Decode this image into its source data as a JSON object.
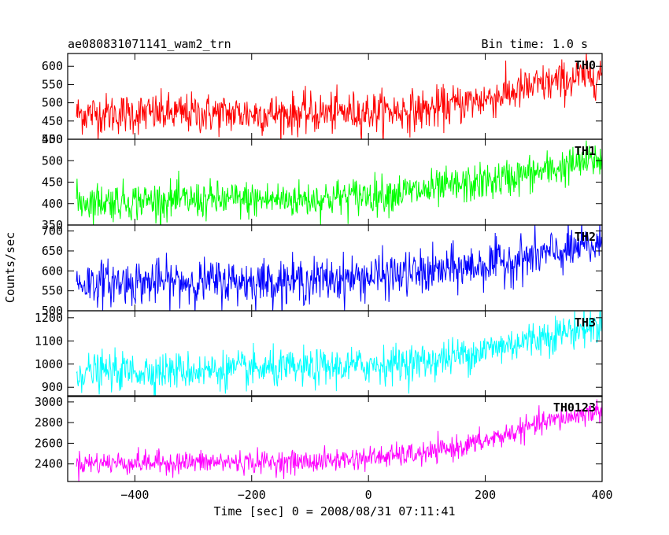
{
  "header": {
    "title": "ae080831071141_wam2_trn",
    "bin_time": "Bin time: 1.0 s"
  },
  "axes": {
    "ylabel": "Counts/sec",
    "xlabel": "Time [sec] 0 = 2008/08/31 07:11:41",
    "x_range": [
      -515,
      400
    ],
    "x_ticks": [
      -400,
      -200,
      0,
      200,
      400
    ],
    "x_tick_labels": [
      "−400",
      "−200",
      "0",
      "200",
      "400"
    ]
  },
  "chart_data": {
    "type": "line",
    "x_start": -500,
    "x_end": 400,
    "bin_time": 1.0,
    "panels": [
      {
        "name": "TH0",
        "color": "#ff0000",
        "y_range": [
          400,
          635
        ],
        "y_ticks": [
          400,
          450,
          500,
          550,
          600
        ],
        "trend": [
          [
            -500,
            470
          ],
          [
            -100,
            470
          ],
          [
            100,
            480
          ],
          [
            200,
            510
          ],
          [
            300,
            550
          ],
          [
            400,
            580
          ]
        ],
        "noise": 28
      },
      {
        "name": "TH1",
        "color": "#00ff00",
        "y_range": [
          350,
          550
        ],
        "y_ticks": [
          350,
          400,
          450,
          500,
          550
        ],
        "trend": [
          [
            -500,
            405
          ],
          [
            -100,
            410
          ],
          [
            100,
            430
          ],
          [
            200,
            450
          ],
          [
            300,
            475
          ],
          [
            400,
            505
          ]
        ],
        "noise": 22
      },
      {
        "name": "TH2",
        "color": "#0000ff",
        "y_range": [
          500,
          715
        ],
        "y_ticks": [
          500,
          550,
          600,
          650,
          700
        ],
        "trend": [
          [
            -500,
            570
          ],
          [
            -100,
            575
          ],
          [
            100,
            595
          ],
          [
            200,
            615
          ],
          [
            300,
            640
          ],
          [
            400,
            665
          ]
        ],
        "noise": 28
      },
      {
        "name": "TH3",
        "color": "#00ffff",
        "y_range": [
          860,
          1230
        ],
        "y_ticks": [
          900,
          1000,
          1100,
          1200
        ],
        "trend": [
          [
            -500,
            965
          ],
          [
            -100,
            980
          ],
          [
            100,
            1010
          ],
          [
            200,
            1060
          ],
          [
            300,
            1120
          ],
          [
            400,
            1170
          ]
        ],
        "noise": 40
      },
      {
        "name": "TH0123",
        "color": "#ff00ff",
        "y_range": [
          2230,
          3060
        ],
        "y_ticks": [
          2400,
          2600,
          2800,
          3000
        ],
        "trend": [
          [
            -500,
            2410
          ],
          [
            -100,
            2420
          ],
          [
            100,
            2500
          ],
          [
            200,
            2620
          ],
          [
            300,
            2800
          ],
          [
            400,
            2920
          ]
        ],
        "noise": 55
      }
    ]
  }
}
